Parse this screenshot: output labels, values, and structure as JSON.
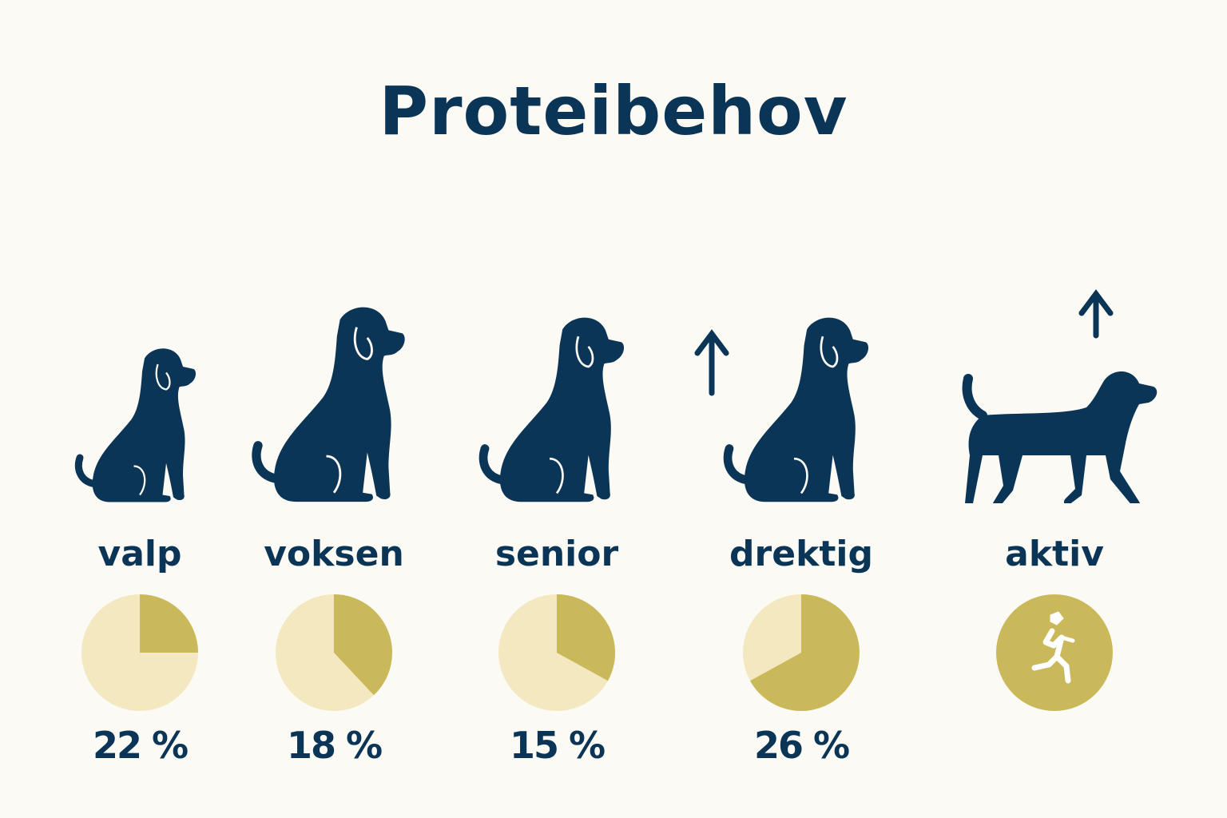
{
  "title": "Proteibehov",
  "colors": {
    "navy": "#0b3556",
    "pie_light": "#f3e8bf",
    "pie_dark": "#c9b95a",
    "background": "#fcfaf4"
  },
  "groups": [
    {
      "label": "valp",
      "percent": "22 %",
      "pie_fill_fraction": 0.25,
      "icon": "sitting-puppy-icon",
      "arrow": false,
      "size": 0.75
    },
    {
      "label": "voksen",
      "percent": "18 %",
      "pie_fill_fraction": 0.38,
      "icon": "sitting-adult-dog-icon",
      "arrow": false,
      "size": 0.95
    },
    {
      "label": "senior",
      "percent": "15 %",
      "pie_fill_fraction": 0.33,
      "icon": "sitting-senior-dog-icon",
      "arrow": false,
      "size": 0.9
    },
    {
      "label": "drektig",
      "percent": "26 %",
      "pie_fill_fraction": 0.67,
      "icon": "sitting-pregnant-dog-icon",
      "arrow": true,
      "size": 0.9
    },
    {
      "label": "aktiv",
      "percent": "",
      "pie_fill_fraction": 1,
      "icon": "walking-dog-icon",
      "arrow": true,
      "badge": "running-person-icon"
    }
  ]
}
